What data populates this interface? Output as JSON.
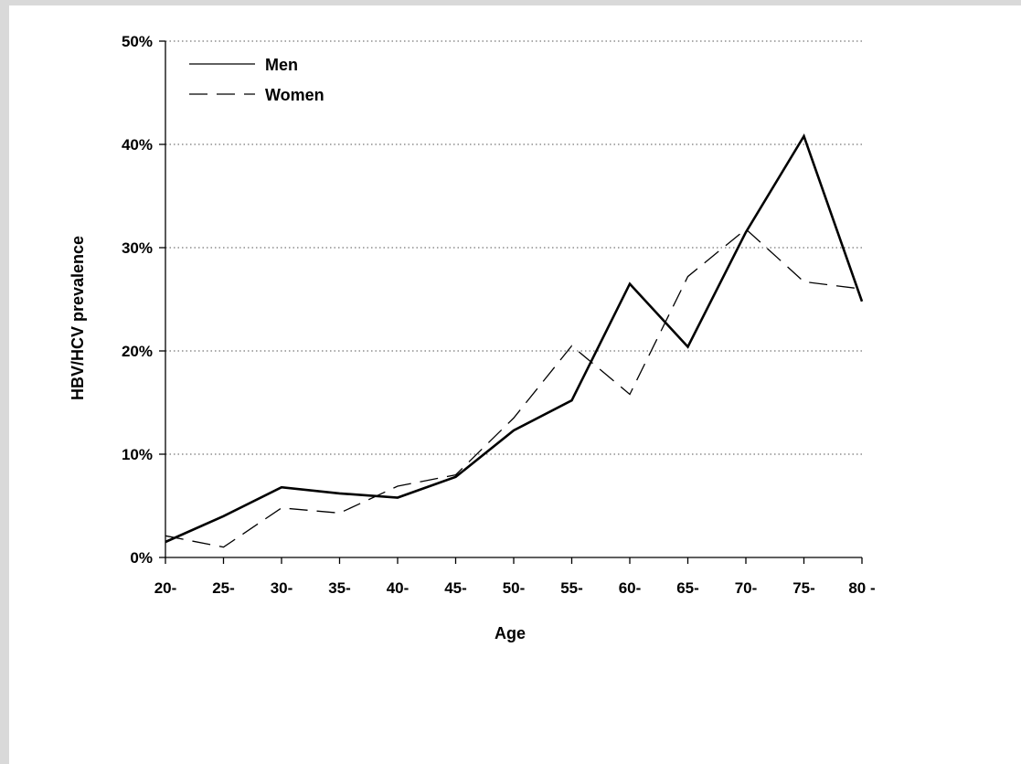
{
  "chart_data": {
    "type": "line",
    "xlabel": "Age",
    "ylabel": "HBV/HCV prevalence",
    "categories": [
      "20-",
      "25-",
      "30-",
      "35-",
      "40-",
      "45-",
      "50-",
      "55-",
      "60-",
      "65-",
      "70-",
      "75-",
      "80 -"
    ],
    "y_ticks": [
      "0%",
      "10%",
      "20%",
      "30%",
      "40%",
      "50%"
    ],
    "ylim": [
      0,
      50
    ],
    "grid": "horizontal dotted",
    "legend_position": "top-left",
    "series": [
      {
        "name": "Men",
        "style": "solid",
        "color": "#000000",
        "values": [
          1.5,
          4.0,
          6.8,
          6.2,
          5.8,
          7.8,
          12.3,
          15.2,
          26.5,
          20.4,
          31.5,
          40.8,
          24.8
        ]
      },
      {
        "name": "Women",
        "style": "dashed",
        "color": "#000000",
        "values": [
          2.1,
          1.0,
          4.8,
          4.3,
          6.9,
          8.0,
          13.5,
          20.5,
          15.8,
          27.2,
          31.8,
          26.7,
          26.0
        ]
      }
    ]
  }
}
